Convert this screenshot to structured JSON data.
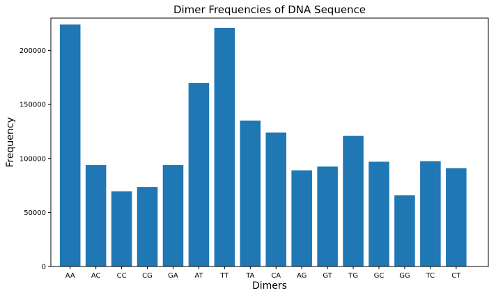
{
  "chart_data": {
    "type": "bar",
    "title": "Dimer Frequencies of DNA Sequence",
    "xlabel": "Dimers",
    "ylabel": "Frequency",
    "categories": [
      "AA",
      "AC",
      "CC",
      "CG",
      "GA",
      "AT",
      "TT",
      "TA",
      "CA",
      "AG",
      "GT",
      "TG",
      "GC",
      "GG",
      "TC",
      "CT"
    ],
    "values": [
      224000,
      94000,
      69500,
      73500,
      94000,
      170000,
      221000,
      135000,
      124000,
      89000,
      92500,
      121000,
      97000,
      66000,
      97500,
      91000
    ],
    "ylim": [
      0,
      230000
    ],
    "yticks": [
      0,
      50000,
      100000,
      150000,
      200000
    ],
    "grid": false,
    "bar_color": "#1f77b4"
  }
}
